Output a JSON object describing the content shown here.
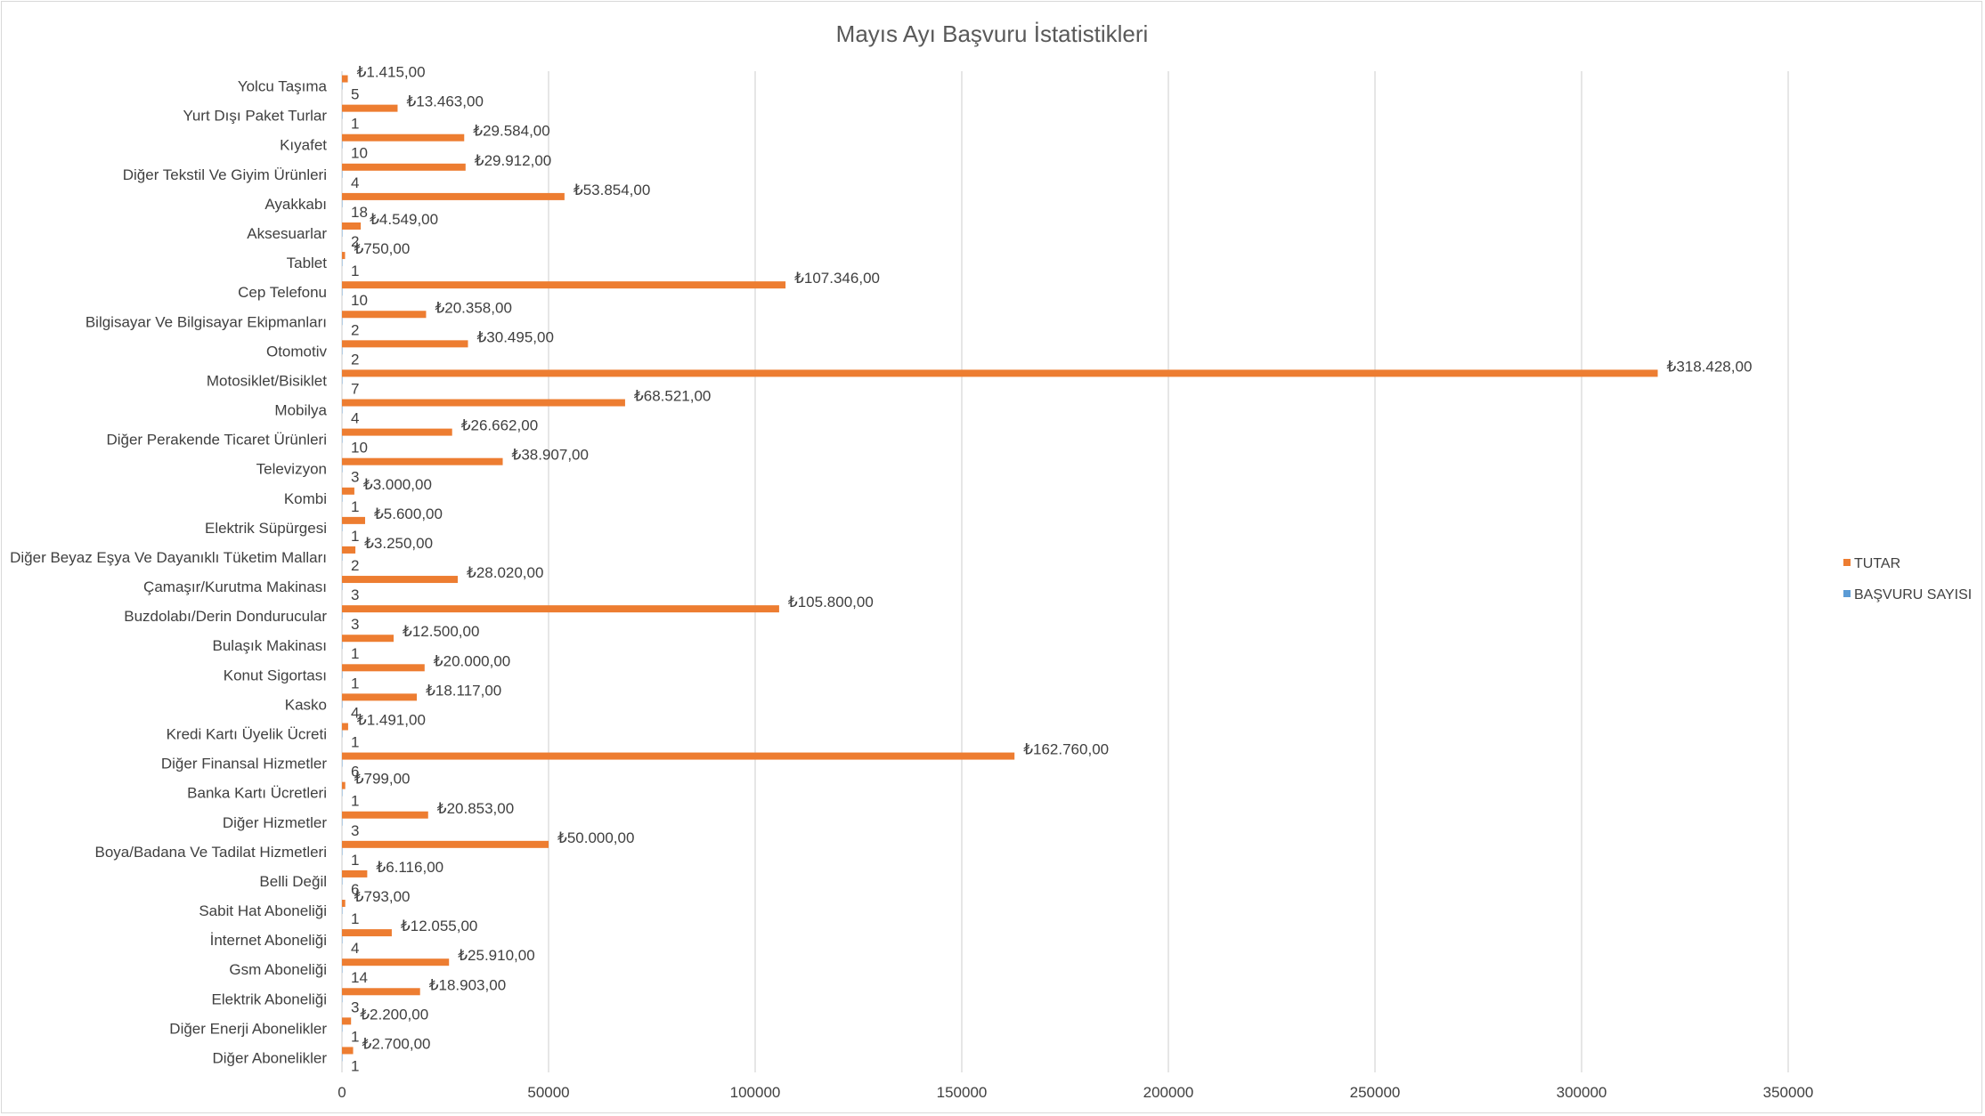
{
  "chart_data": {
    "type": "bar",
    "orientation": "horizontal",
    "title": "Mayıs Ayı Başvuru İstatistikleri",
    "xlim": [
      0,
      350000
    ],
    "x_ticks": [
      "0",
      "50000",
      "100000",
      "150000",
      "200000",
      "250000",
      "300000",
      "350000"
    ],
    "grid": "vertical",
    "legend_position": "right",
    "categories": [
      "Yolcu Taşıma",
      "Yurt Dışı Paket Turlar",
      "Kıyafet",
      "Diğer Tekstil Ve Giyim Ürünleri",
      "Ayakkabı",
      "Aksesuarlar",
      "Tablet",
      "Cep Telefonu",
      "Bilgisayar Ve Bilgisayar Ekipmanları",
      "Otomotiv",
      "Motosiklet/Bisiklet",
      "Mobilya",
      "Diğer Perakende Ticaret Ürünleri",
      "Televizyon",
      "Kombi",
      "Elektrik Süpürgesi",
      "Diğer Beyaz Eşya Ve Dayanıklı Tüketim Malları",
      "Çamaşır/Kurutma Makinası",
      "Buzdolabı/Derin Dondurucular",
      "Bulaşık Makinası",
      "Konut Sigortası",
      "Kasko",
      "Kredi Kartı Üyelik Ücreti",
      "Diğer Finansal Hizmetler",
      "Banka Kartı Ücretleri",
      "Diğer Hizmetler",
      "Boya/Badana Ve Tadilat Hizmetleri",
      "Belli Değil",
      "Sabit Hat Aboneliği",
      "İnternet Aboneliği",
      "Gsm Aboneliği",
      "Elektrik Aboneliği",
      "Diğer Enerji Abonelikler",
      "Diğer Abonelikler"
    ],
    "series": [
      {
        "name": "TUTAR",
        "color": "#ED7D31",
        "values": [
          1415,
          13463,
          29584,
          29912,
          53854,
          4549,
          750,
          107346,
          20358,
          30495,
          318428,
          68521,
          26662,
          38907,
          3000,
          5600,
          3250,
          28020,
          105800,
          12500,
          20000,
          18117,
          1491,
          162760,
          799,
          20853,
          50000,
          6116,
          793,
          12055,
          25910,
          18903,
          2200,
          2700
        ],
        "labels": [
          "₺1.415,00",
          "₺13.463,00",
          "₺29.584,00",
          "₺29.912,00",
          "₺53.854,00",
          "₺4.549,00",
          "₺750,00",
          "₺107.346,00",
          "₺20.358,00",
          "₺30.495,00",
          "₺318.428,00",
          "₺68.521,00",
          "₺26.662,00",
          "₺38.907,00",
          "₺3.000,00",
          "₺5.600,00",
          "₺3.250,00",
          "₺28.020,00",
          "₺105.800,00",
          "₺12.500,00",
          "₺20.000,00",
          "₺18.117,00",
          "₺1.491,00",
          "₺162.760,00",
          "₺799,00",
          "₺20.853,00",
          "₺50.000,00",
          "₺6.116,00",
          "₺793,00",
          "₺12.055,00",
          "₺25.910,00",
          "₺18.903,00",
          "₺2.200,00",
          "₺2.700,00"
        ]
      },
      {
        "name": "BAŞVURU SAYISI",
        "color": "#5B9BD5",
        "values": [
          5,
          1,
          10,
          4,
          18,
          2,
          1,
          10,
          2,
          2,
          7,
          4,
          10,
          3,
          1,
          1,
          2,
          3,
          3,
          1,
          1,
          4,
          1,
          6,
          1,
          3,
          1,
          6,
          1,
          4,
          14,
          3,
          1,
          1
        ]
      }
    ]
  }
}
